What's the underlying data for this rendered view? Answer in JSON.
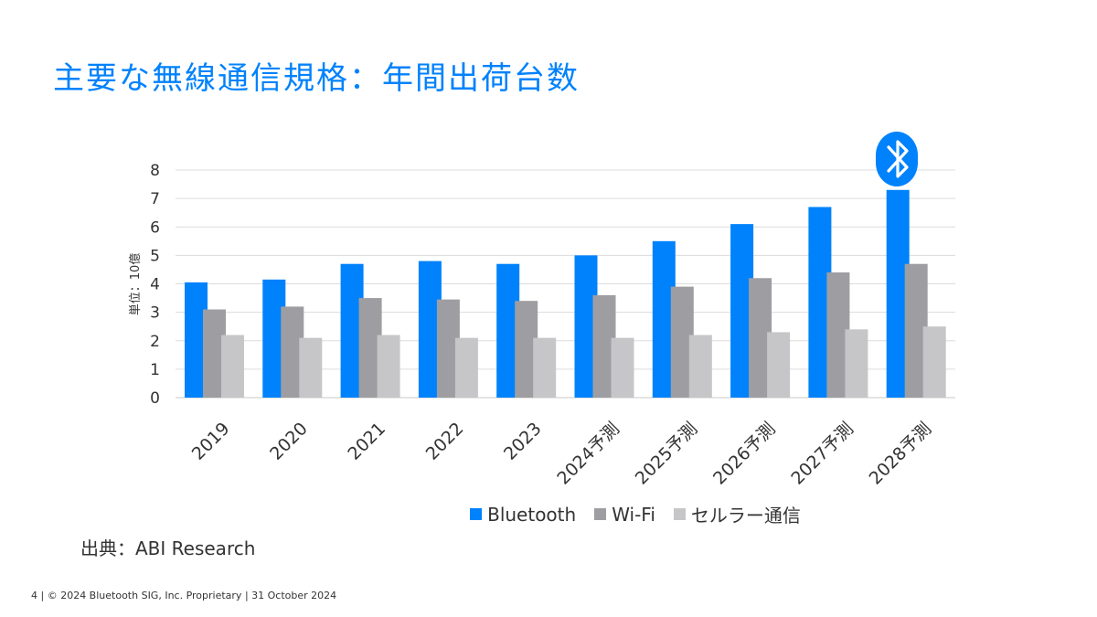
{
  "slide": {
    "title": "主要な無線通信規格：年間出荷台数",
    "source": "出典：ABI Research",
    "footer": "4 | © 2024 Bluetooth SIG, Inc. Proprietary | 31 October 2024"
  },
  "logo": {
    "icon": "bluetooth-logo-icon",
    "color": "#0082fc"
  },
  "chart_data": {
    "type": "bar",
    "title": "",
    "ylabel": "単位：10億",
    "xlabel": "",
    "ylim": [
      0,
      8
    ],
    "yticks": [
      "0",
      "1",
      "2",
      "3",
      "4",
      "5",
      "6",
      "7",
      "8"
    ],
    "grid": true,
    "legend": "bottom",
    "categories": [
      "2019",
      "2020",
      "2021",
      "2022",
      "2023",
      "2024予測",
      "2025予測",
      "2026予測",
      "2027予測",
      "2028予測"
    ],
    "series": [
      {
        "name": "Bluetooth",
        "color": "#0082fc",
        "values": [
          4.05,
          4.15,
          4.7,
          4.8,
          4.7,
          5.0,
          5.5,
          6.1,
          6.7,
          7.3
        ]
      },
      {
        "name": "Wi-Fi",
        "color": "#9e9ea2",
        "values": [
          3.1,
          3.2,
          3.5,
          3.45,
          3.4,
          3.6,
          3.9,
          4.2,
          4.4,
          4.7
        ]
      },
      {
        "name": "セルラー通信",
        "color": "#c6c6c8",
        "values": [
          2.2,
          2.1,
          2.2,
          2.1,
          2.1,
          2.1,
          2.2,
          2.3,
          2.4,
          2.5
        ]
      }
    ]
  }
}
